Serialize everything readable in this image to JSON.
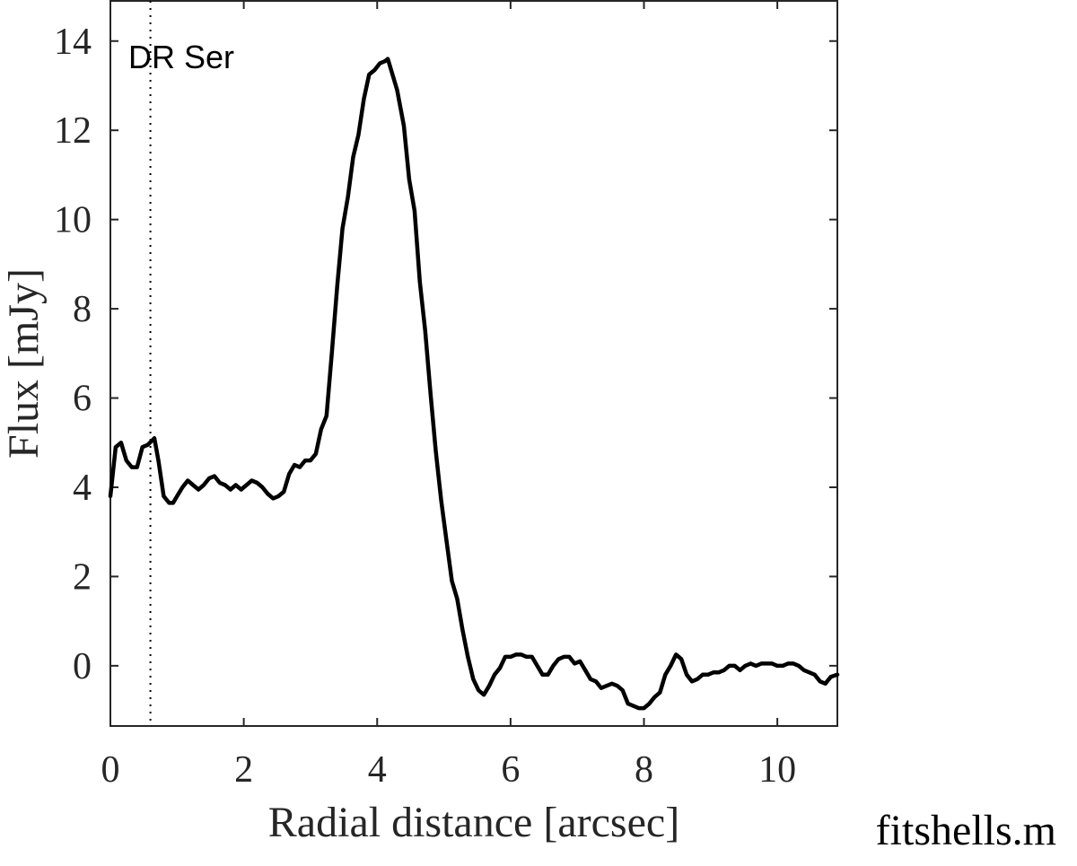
{
  "chart_data": {
    "type": "line",
    "title": "",
    "xlabel": "Radial distance [arcsec]",
    "ylabel": "Flux [mJy]",
    "xlim": [
      0,
      10.9
    ],
    "ylim": [
      -1.35,
      14.9
    ],
    "xticks": [
      0,
      2,
      4,
      6,
      8,
      10
    ],
    "yticks": [
      0,
      2,
      4,
      6,
      8,
      10,
      12,
      14
    ],
    "grid": false,
    "legend": "none",
    "colors": {
      "line": "#000000",
      "axes": "#262626",
      "marker_line": "#000000"
    },
    "annotation": {
      "text": "DR Ser",
      "x_marker": 0.6
    },
    "series": [
      {
        "x": [
          0,
          0.08,
          0.16,
          0.24,
          0.32,
          0.4,
          0.48,
          0.56,
          0.66,
          0.72,
          0.8,
          0.88,
          0.94,
          1.0,
          1.08,
          1.16,
          1.24,
          1.32,
          1.4,
          1.48,
          1.56,
          1.64,
          1.72,
          1.8,
          1.88,
          1.96,
          2.04,
          2.12,
          2.2,
          2.28,
          2.36,
          2.44,
          2.52,
          2.6,
          2.68,
          2.76,
          2.84,
          2.92,
          3.0,
          3.08,
          3.16,
          3.24,
          3.32,
          3.4,
          3.48,
          3.56,
          3.64,
          3.72,
          3.8,
          3.88,
          3.96,
          4.04,
          4.12,
          4.16,
          4.2,
          4.3,
          4.4,
          4.48,
          4.56,
          4.64,
          4.72,
          4.8,
          4.88,
          4.96,
          5.04,
          5.12,
          5.2,
          5.28,
          5.36,
          5.44,
          5.52,
          5.6,
          5.68,
          5.76,
          5.84,
          5.92,
          6.0,
          6.08,
          6.16,
          6.24,
          6.32,
          6.4,
          6.48,
          6.56,
          6.64,
          6.72,
          6.8,
          6.88,
          6.96,
          7.04,
          7.12,
          7.2,
          7.28,
          7.36,
          7.44,
          7.52,
          7.6,
          7.68,
          7.76,
          7.84,
          7.92,
          8.0,
          8.08,
          8.16,
          8.24,
          8.32,
          8.4,
          8.48,
          8.56,
          8.64,
          8.72,
          8.8,
          8.88,
          8.96,
          9.04,
          9.12,
          9.2,
          9.28,
          9.36,
          9.44,
          9.52,
          9.6,
          9.68,
          9.76,
          9.84,
          9.92,
          10.0,
          10.08,
          10.16,
          10.24,
          10.32,
          10.4,
          10.48,
          10.56,
          10.64,
          10.72,
          10.8,
          10.9
        ],
        "y": [
          3.8,
          4.9,
          5.0,
          4.6,
          4.45,
          4.45,
          4.9,
          4.95,
          5.1,
          4.6,
          3.8,
          3.65,
          3.65,
          3.8,
          4.0,
          4.15,
          4.05,
          3.95,
          4.05,
          4.2,
          4.25,
          4.1,
          4.05,
          3.95,
          4.05,
          3.95,
          4.05,
          4.15,
          4.1,
          4.0,
          3.85,
          3.75,
          3.8,
          3.9,
          4.3,
          4.5,
          4.45,
          4.6,
          4.6,
          4.75,
          5.3,
          5.6,
          7.0,
          8.5,
          9.8,
          10.5,
          11.4,
          11.9,
          12.7,
          13.25,
          13.35,
          13.5,
          13.55,
          13.6,
          13.4,
          12.9,
          12.1,
          10.9,
          10.2,
          8.6,
          7.5,
          6.1,
          4.8,
          3.7,
          2.8,
          1.9,
          1.5,
          0.8,
          0.2,
          -0.3,
          -0.55,
          -0.65,
          -0.45,
          -0.2,
          -0.05,
          0.2,
          0.2,
          0.25,
          0.25,
          0.2,
          0.2,
          0.0,
          -0.2,
          -0.2,
          0.0,
          0.15,
          0.2,
          0.2,
          0.05,
          0.1,
          -0.1,
          -0.3,
          -0.35,
          -0.5,
          -0.45,
          -0.4,
          -0.45,
          -0.55,
          -0.85,
          -0.9,
          -0.95,
          -0.95,
          -0.85,
          -0.7,
          -0.6,
          -0.2,
          0.0,
          0.25,
          0.15,
          -0.2,
          -0.35,
          -0.3,
          -0.2,
          -0.2,
          -0.15,
          -0.15,
          -0.1,
          0.0,
          0.0,
          -0.1,
          0.0,
          0.05,
          0.0,
          0.05,
          0.05,
          0.05,
          0.0,
          0.0,
          0.05,
          0.05,
          0.0,
          -0.1,
          -0.15,
          -0.2,
          -0.35,
          -0.4,
          -0.25,
          -0.2
        ]
      }
    ]
  },
  "footer": {
    "text": "fitshells.m"
  }
}
